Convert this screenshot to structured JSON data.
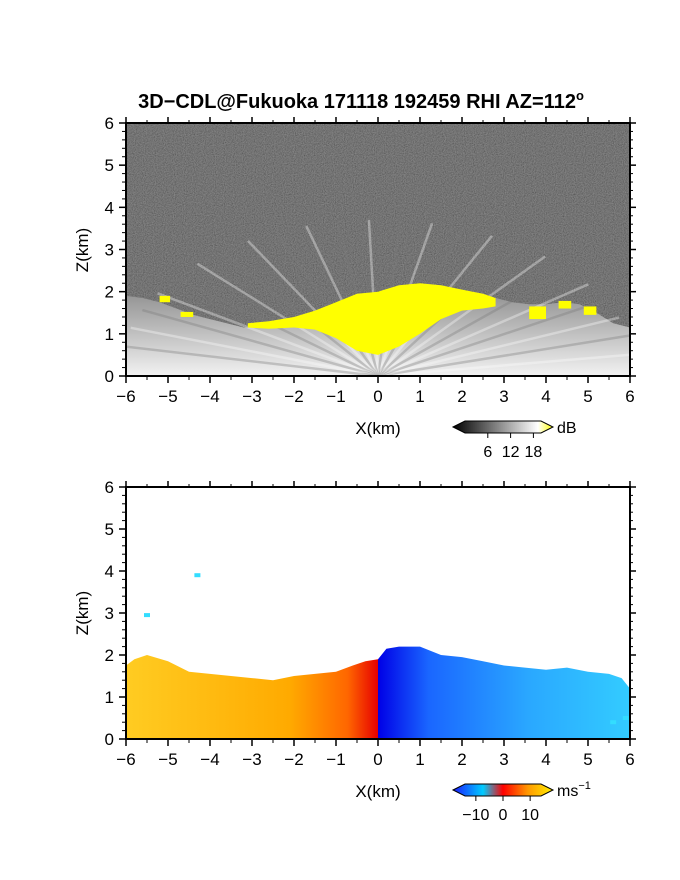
{
  "title": "3D−CDL@Fukuoka 171118 192459 RHI AZ=112",
  "title_superscript": "o",
  "chart_data": [
    {
      "type": "heatmap",
      "field": "reflectivity",
      "xlabel": "X(km)",
      "ylabel": "Z(km)",
      "xlim": [
        -6,
        6
      ],
      "ylim": [
        0,
        6
      ],
      "xticks": [
        "−6",
        "−5",
        "−4",
        "−3",
        "−2",
        "−1",
        "0",
        "1",
        "2",
        "3",
        "4",
        "5",
        "6"
      ],
      "yticks": [
        "0",
        "1",
        "2",
        "3",
        "4",
        "5",
        "6"
      ],
      "xtick_values": [
        -6,
        -5,
        -4,
        -3,
        -2,
        -1,
        0,
        1,
        2,
        3,
        4,
        5,
        6
      ],
      "ytick_values": [
        0,
        1,
        2,
        3,
        4,
        5,
        6
      ],
      "colorbar": {
        "unit": "dB",
        "ticks": [
          "6",
          "12",
          "18"
        ],
        "tick_values": [
          6,
          12,
          18
        ],
        "range": [
          0,
          20
        ],
        "colors": [
          "#000000",
          "#ffffff",
          "#ffff00"
        ]
      },
      "background_color": "#1c1c1c",
      "high_color": "#ffff00",
      "top_profile": [
        [
          -6.0,
          1.9
        ],
        [
          -5.6,
          1.85
        ],
        [
          -5.2,
          1.75
        ],
        [
          -4.8,
          1.6
        ],
        [
          -4.4,
          1.45
        ],
        [
          -4.0,
          1.35
        ],
        [
          -3.6,
          1.25
        ],
        [
          -3.2,
          1.15
        ],
        [
          -2.8,
          1.15
        ],
        [
          -2.4,
          1.2
        ],
        [
          -2.0,
          1.3
        ],
        [
          -1.6,
          1.45
        ],
        [
          -1.2,
          1.6
        ],
        [
          -0.8,
          1.8
        ],
        [
          -0.4,
          1.95
        ],
        [
          0.0,
          2.0
        ],
        [
          0.4,
          2.1
        ],
        [
          0.8,
          2.15
        ],
        [
          1.2,
          2.1
        ],
        [
          1.6,
          2.05
        ],
        [
          2.0,
          2.0
        ],
        [
          2.4,
          1.95
        ],
        [
          2.8,
          1.85
        ],
        [
          3.2,
          1.75
        ],
        [
          3.6,
          1.7
        ],
        [
          4.0,
          1.7
        ],
        [
          4.4,
          1.75
        ],
        [
          4.8,
          1.7
        ],
        [
          5.2,
          1.5
        ],
        [
          5.6,
          1.25
        ],
        [
          6.0,
          1.15
        ]
      ],
      "yellow_band": [
        [
          -3.1,
          1.15,
          1.25
        ],
        [
          -2.6,
          1.12,
          1.3
        ],
        [
          -2.0,
          1.15,
          1.4
        ],
        [
          -1.5,
          1.1,
          1.55
        ],
        [
          -1.0,
          0.9,
          1.75
        ],
        [
          -0.5,
          0.6,
          1.95
        ],
        [
          0.0,
          0.5,
          2.0
        ],
        [
          0.5,
          0.7,
          2.15
        ],
        [
          1.0,
          1.0,
          2.2
        ],
        [
          1.5,
          1.35,
          2.15
        ],
        [
          2.0,
          1.55,
          2.05
        ],
        [
          2.5,
          1.6,
          1.95
        ],
        [
          2.8,
          1.65,
          1.85
        ]
      ],
      "yellow_patches": [
        [
          -5.2,
          1.75,
          0.25,
          0.15
        ],
        [
          -4.7,
          1.4,
          0.3,
          0.12
        ],
        [
          3.6,
          1.35,
          0.4,
          0.3
        ],
        [
          4.3,
          1.6,
          0.3,
          0.18
        ],
        [
          4.9,
          1.45,
          0.3,
          0.2
        ]
      ]
    },
    {
      "type": "heatmap",
      "field": "radial_velocity",
      "xlabel": "X(km)",
      "ylabel": "Z(km)",
      "xlim": [
        -6,
        6
      ],
      "ylim": [
        0,
        6
      ],
      "xticks": [
        "−6",
        "−5",
        "−4",
        "−3",
        "−2",
        "−1",
        "0",
        "1",
        "2",
        "3",
        "4",
        "5",
        "6"
      ],
      "yticks": [
        "0",
        "1",
        "2",
        "3",
        "4",
        "5",
        "6"
      ],
      "xtick_values": [
        -6,
        -5,
        -4,
        -3,
        -2,
        -1,
        0,
        1,
        2,
        3,
        4,
        5,
        6
      ],
      "ytick_values": [
        0,
        1,
        2,
        3,
        4,
        5,
        6
      ],
      "colorbar": {
        "unit": "ms",
        "unit_superscript": "−1",
        "ticks": [
          "−10",
          "0",
          "10"
        ],
        "tick_values": [
          -10,
          0,
          10
        ],
        "range": [
          -14,
          14
        ],
        "colors": [
          "#1a1aff",
          "#00ccff",
          "#ff0000",
          "#ffcc00"
        ]
      },
      "background_color": "#ffffff",
      "left_profile": [
        [
          -6.0,
          1.75
        ],
        [
          -5.8,
          1.9
        ],
        [
          -5.5,
          2.0
        ],
        [
          -5.0,
          1.85
        ],
        [
          -4.5,
          1.6
        ],
        [
          -4.0,
          1.55
        ],
        [
          -3.5,
          1.5
        ],
        [
          -3.0,
          1.45
        ],
        [
          -2.5,
          1.4
        ],
        [
          -2.0,
          1.5
        ],
        [
          -1.5,
          1.55
        ],
        [
          -1.0,
          1.6
        ],
        [
          -0.6,
          1.75
        ],
        [
          -0.3,
          1.85
        ],
        [
          0.0,
          1.9
        ]
      ],
      "right_profile": [
        [
          0.0,
          1.9
        ],
        [
          0.2,
          2.15
        ],
        [
          0.5,
          2.2
        ],
        [
          1.0,
          2.2
        ],
        [
          1.5,
          2.0
        ],
        [
          2.0,
          1.95
        ],
        [
          2.5,
          1.85
        ],
        [
          3.0,
          1.75
        ],
        [
          3.5,
          1.7
        ],
        [
          4.0,
          1.65
        ],
        [
          4.5,
          1.7
        ],
        [
          5.0,
          1.6
        ],
        [
          5.5,
          1.55
        ],
        [
          5.8,
          1.45
        ],
        [
          6.0,
          1.2
        ]
      ],
      "speckles": [
        [
          -5.5,
          2.95
        ],
        [
          -4.3,
          3.9
        ],
        [
          5.6,
          0.4
        ],
        [
          5.9,
          0.5
        ]
      ],
      "left_velocity_range": [
        6,
        14
      ],
      "right_velocity_range": [
        -12,
        -6
      ]
    }
  ]
}
